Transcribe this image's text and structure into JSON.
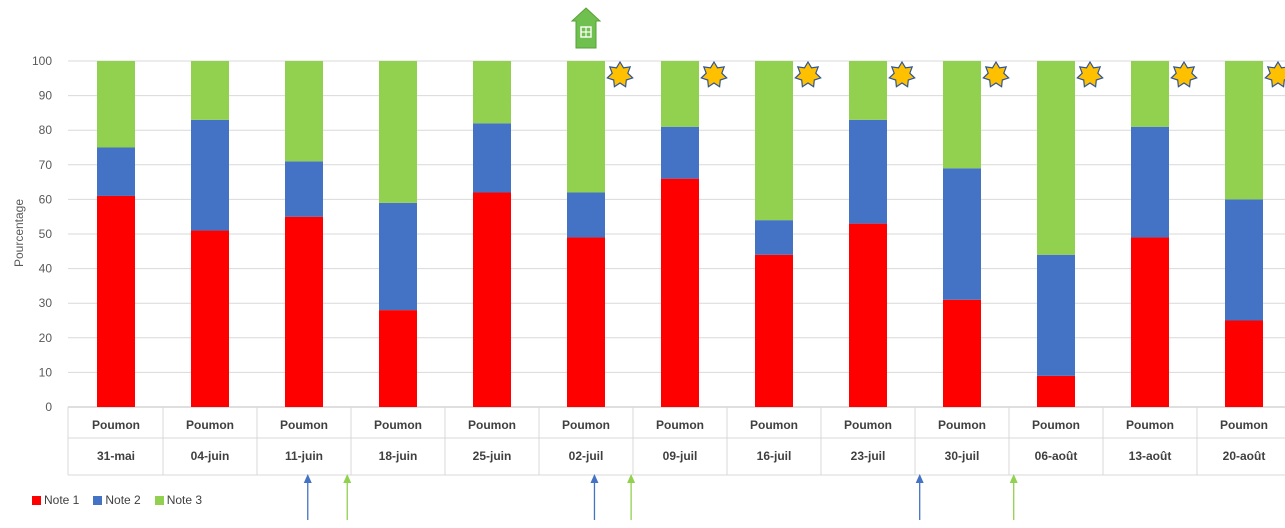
{
  "chart_data": {
    "type": "bar",
    "stacked": true,
    "ylabel": "Pourcentage",
    "ylim": [
      0,
      100
    ],
    "yticks": [
      0,
      10,
      20,
      30,
      40,
      50,
      60,
      70,
      80,
      90,
      100
    ],
    "grid": true,
    "legend_position": "bottom-left",
    "category_row1": [
      "Poumon",
      "Poumon",
      "Poumon",
      "Poumon",
      "Poumon",
      "Poumon",
      "Poumon",
      "Poumon",
      "Poumon",
      "Poumon",
      "Poumon",
      "Poumon",
      "Poumon"
    ],
    "category_row2": [
      "31-mai",
      "04-juin",
      "11-juin",
      "18-juin",
      "25-juin",
      "02-juil",
      "09-juil",
      "16-juil",
      "23-juil",
      "30-juil",
      "06-août",
      "13-août",
      "20-août"
    ],
    "series": [
      {
        "name": "Note 1",
        "color": "#ff0000",
        "values": [
          61,
          51,
          55,
          28,
          62,
          49,
          66,
          44,
          53,
          31,
          9,
          49,
          25
        ]
      },
      {
        "name": "Note 2",
        "color": "#4472c4",
        "values": [
          14,
          32,
          16,
          31,
          20,
          13,
          15,
          10,
          30,
          38,
          35,
          32,
          35
        ]
      },
      {
        "name": "Note 3",
        "color": "#92d050",
        "values": [
          25,
          17,
          29,
          41,
          18,
          38,
          19,
          46,
          17,
          31,
          56,
          19,
          40
        ]
      }
    ],
    "annotations": {
      "house_icon": {
        "after_category_index": 5,
        "color": "#70c04f"
      },
      "star_icons": {
        "after_category_indices": [
          5,
          6,
          7,
          8,
          9,
          10,
          11,
          12
        ],
        "color": "#ffc000"
      },
      "blue_arrows": {
        "color": "#4472c4",
        "between_categories": [
          2.04,
          5.09,
          8.55
        ]
      },
      "green_arrows": {
        "color": "#92d050",
        "between_categories": [
          2.46,
          5.48,
          9.55
        ]
      }
    }
  }
}
